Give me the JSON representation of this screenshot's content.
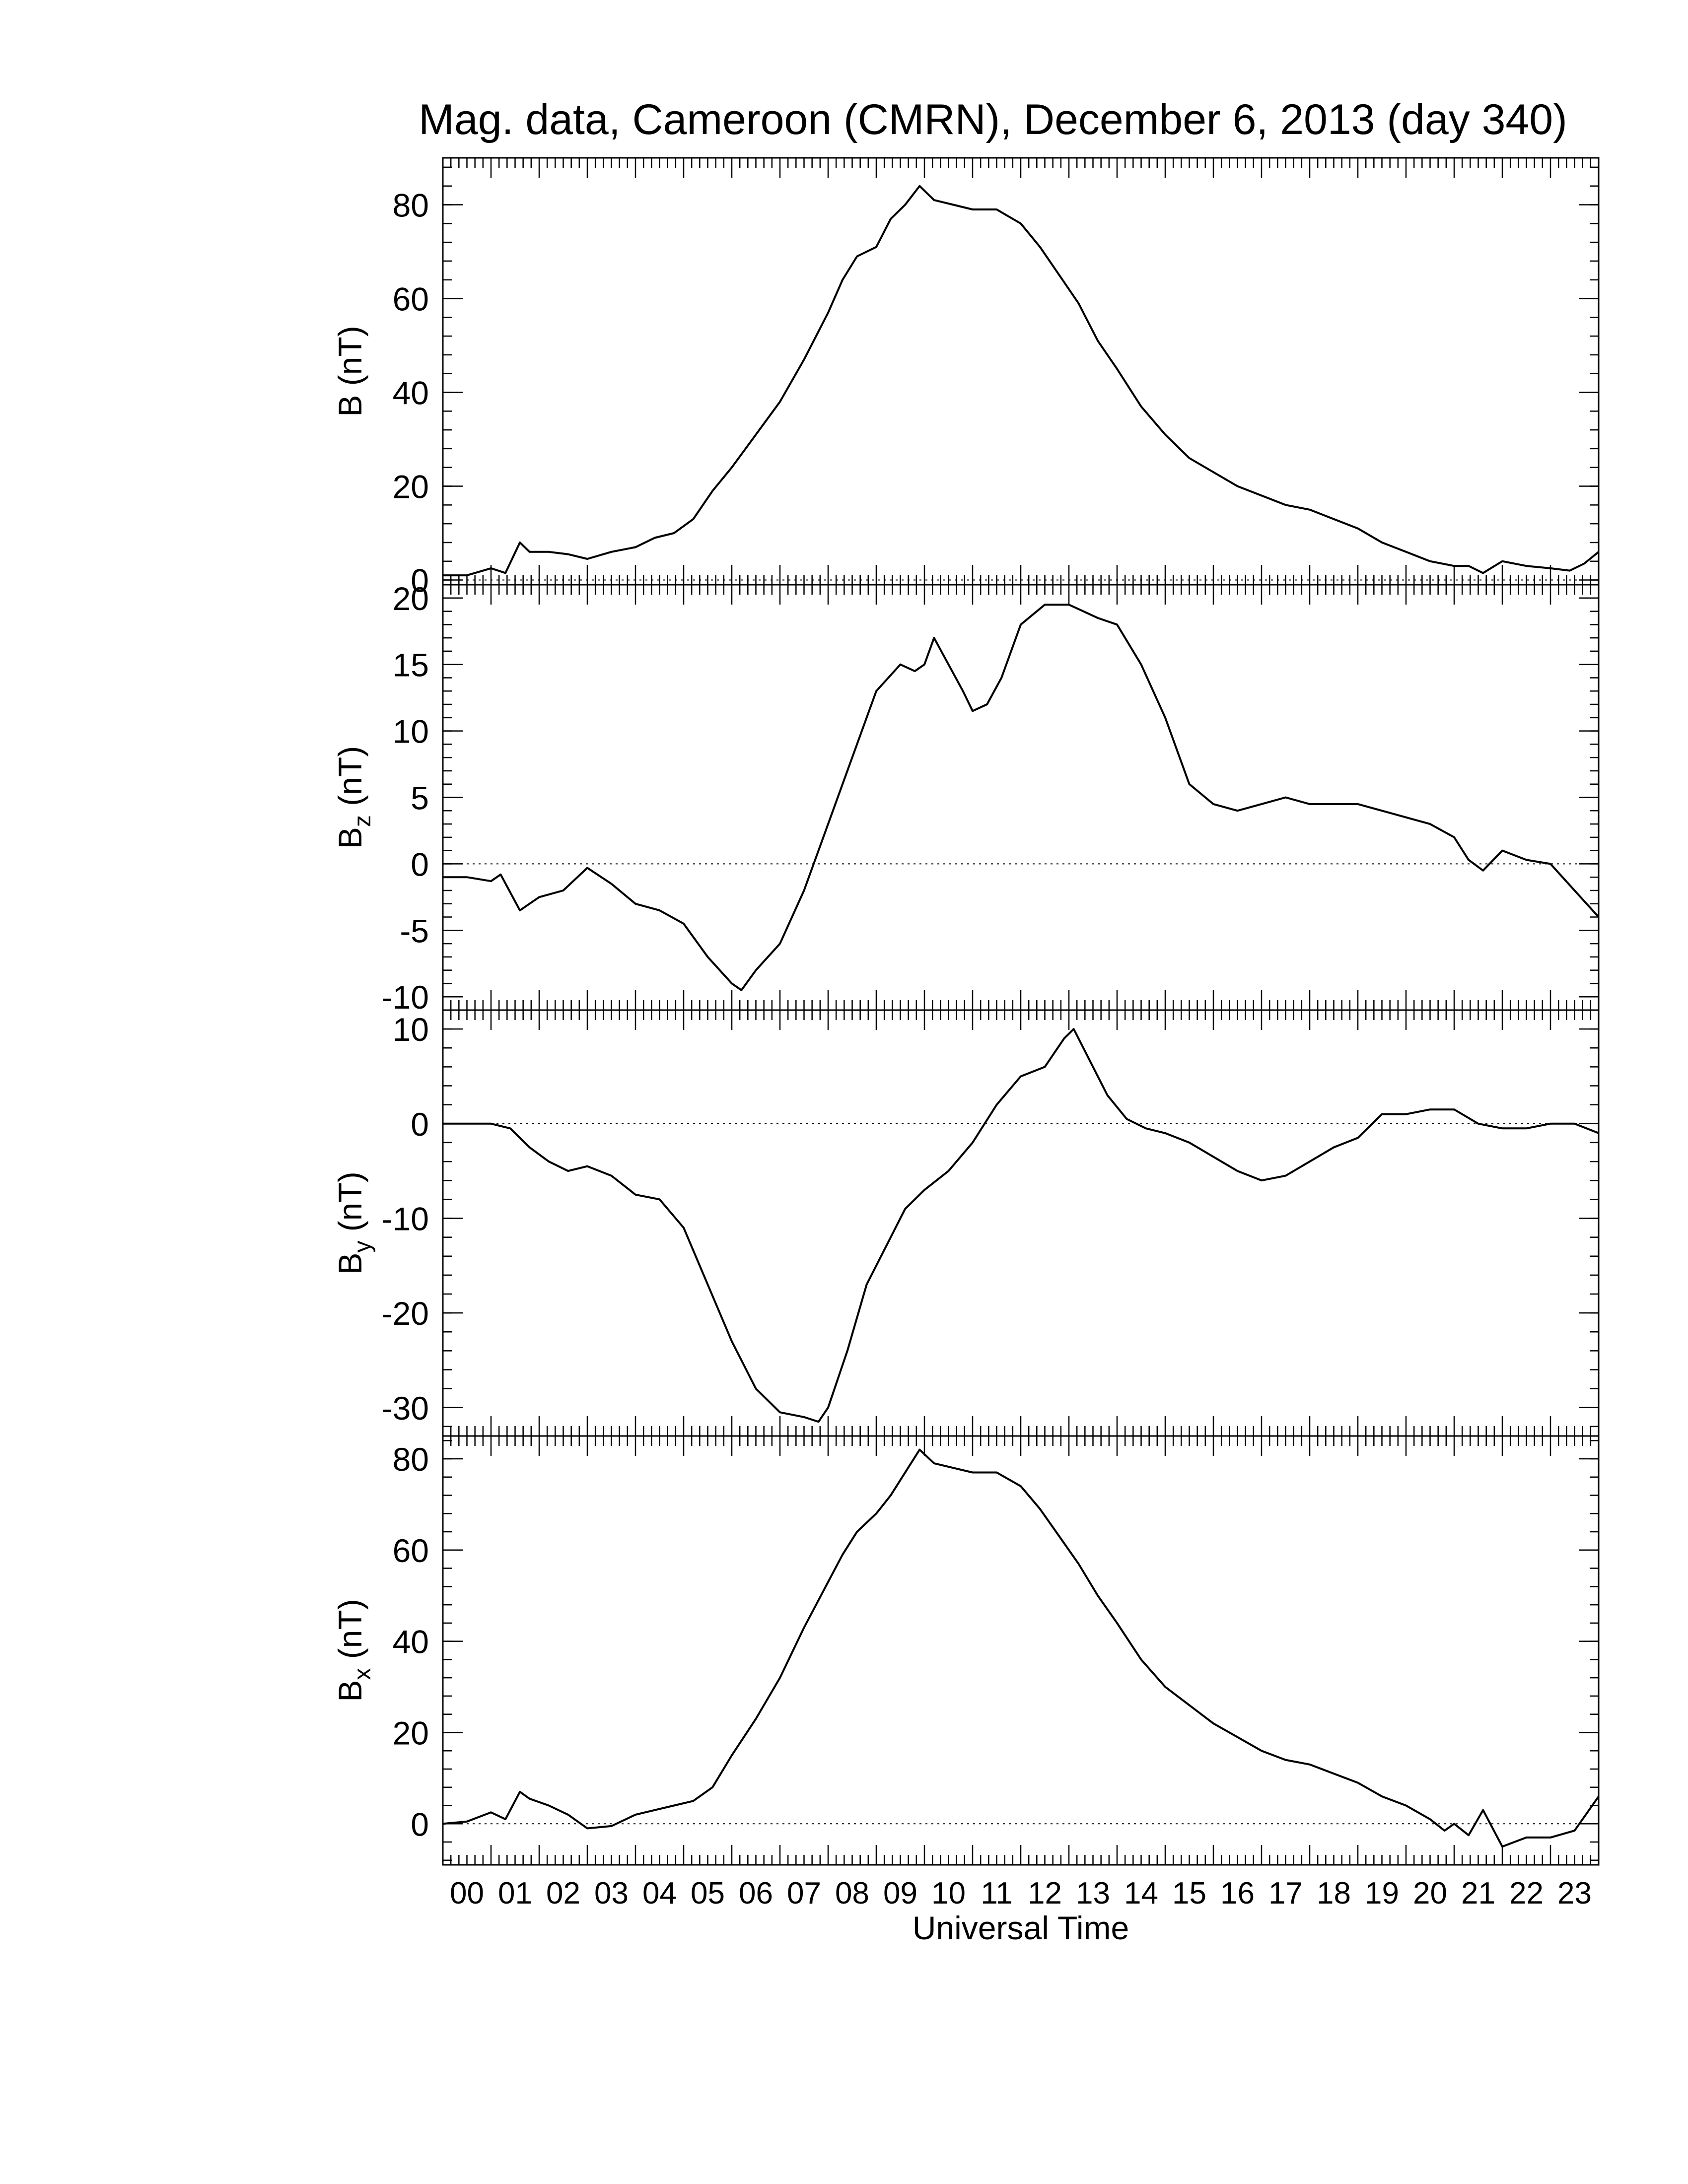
{
  "title": "Mag. data, Cameroon (CMRN), December 6, 2013 (day 340)",
  "colors": {
    "line": "#000000",
    "background": "#ffffff",
    "zero_line": "#000000"
  },
  "chart_data": [
    {
      "type": "line",
      "panel": "B",
      "ylabel": "B (nT)",
      "ylabel_main": "B",
      "ylabel_sub": "",
      "ylabel_unit": "(nT)",
      "ylim": [
        -1,
        90
      ],
      "yticks": [
        0,
        20,
        40,
        60,
        80
      ],
      "ytick_labels": [
        "0",
        "20",
        "40",
        "60",
        "80"
      ],
      "minor_ystep": 4,
      "zero_line": true,
      "series": [
        {
          "x": [
            0,
            0.5,
            1,
            1.3,
            1.6,
            1.8,
            2.2,
            2.6,
            3,
            3.5,
            4,
            4.4,
            4.8,
            5.2,
            5.6,
            6,
            6.5,
            7,
            7.5,
            8,
            8.3,
            8.6,
            9,
            9.3,
            9.6,
            9.9,
            10.2,
            10.6,
            11,
            11.5,
            12,
            12.4,
            12.8,
            13.2,
            13.6,
            14,
            14.5,
            15,
            15.5,
            16,
            16.5,
            17,
            17.5,
            18,
            18.5,
            19,
            19.5,
            20,
            20.5,
            21,
            21.3,
            21.6,
            22,
            22.5,
            23,
            23.4,
            23.7,
            24
          ],
          "y": [
            1,
            1,
            2.5,
            1.5,
            8,
            6,
            6,
            5.5,
            4.5,
            6,
            7,
            9,
            10,
            13,
            19,
            24,
            31,
            38,
            47,
            57,
            64,
            69,
            71,
            77,
            80,
            84,
            81,
            80,
            79,
            79,
            76,
            71,
            65,
            59,
            51,
            45,
            37,
            31,
            26,
            23,
            20,
            18,
            16,
            15,
            13,
            11,
            8,
            6,
            4,
            3,
            3,
            1.5,
            4,
            3,
            2.5,
            2,
            3.5,
            6
          ]
        }
      ]
    },
    {
      "type": "line",
      "panel": "Bz",
      "ylabel": "Bz (nT)",
      "ylabel_main": "B",
      "ylabel_sub": "z",
      "ylabel_unit": "(nT)",
      "ylim": [
        -11,
        21
      ],
      "yticks": [
        -10,
        -5,
        0,
        5,
        10,
        15,
        20
      ],
      "ytick_labels": [
        "-10",
        "-5",
        "0",
        "5",
        "10",
        "15",
        "20"
      ],
      "minor_ystep": 1,
      "zero_line": true,
      "series": [
        {
          "x": [
            0,
            0.5,
            1,
            1.2,
            1.6,
            2,
            2.5,
            3,
            3.5,
            4,
            4.5,
            5,
            5.5,
            6,
            6.2,
            6.5,
            7,
            7.5,
            8,
            8.3,
            8.6,
            9,
            9.5,
            9.8,
            10,
            10.2,
            10.5,
            10.8,
            11,
            11.3,
            11.6,
            12,
            12.5,
            13,
            13.3,
            13.6,
            14,
            14.5,
            15,
            15.5,
            16,
            16.5,
            17,
            17.5,
            18,
            18.5,
            19,
            19.5,
            20,
            20.5,
            21,
            21.3,
            21.6,
            22,
            22.5,
            23,
            23.5,
            24
          ],
          "y": [
            -1,
            -1,
            -1.3,
            -0.8,
            -3.5,
            -2.5,
            -2,
            -0.3,
            -1.5,
            -3,
            -3.5,
            -4.5,
            -7,
            -9,
            -9.5,
            -8,
            -6,
            -2,
            3,
            6,
            9,
            13,
            15,
            14.5,
            15,
            17,
            15,
            13,
            11.5,
            12,
            14,
            18,
            19.5,
            19.5,
            19,
            18.5,
            18,
            15,
            11,
            6,
            4.5,
            4,
            4.5,
            5,
            4.5,
            4.5,
            4.5,
            4,
            3.5,
            3,
            2,
            0.3,
            -0.5,
            1,
            0.3,
            0,
            -2,
            -4
          ]
        }
      ]
    },
    {
      "type": "line",
      "panel": "By",
      "ylabel": "By (nT)",
      "ylabel_main": "B",
      "ylabel_sub": "y",
      "ylabel_unit": "(nT)",
      "ylim": [
        -33,
        12
      ],
      "yticks": [
        -30,
        -20,
        -10,
        0,
        10
      ],
      "ytick_labels": [
        "-30",
        "-20",
        "-10",
        "0",
        "10"
      ],
      "minor_ystep": 2,
      "zero_line": true,
      "series": [
        {
          "x": [
            0,
            0.5,
            1,
            1.4,
            1.8,
            2.2,
            2.6,
            3,
            3.5,
            4,
            4.5,
            5,
            5.5,
            6,
            6.5,
            7,
            7.5,
            7.8,
            8,
            8.4,
            8.8,
            9.2,
            9.6,
            10,
            10.5,
            11,
            11.5,
            12,
            12.5,
            12.9,
            13.1,
            13.4,
            13.8,
            14.2,
            14.6,
            15,
            15.5,
            16,
            16.5,
            17,
            17.5,
            18,
            18.5,
            19,
            19.5,
            20,
            20.5,
            21,
            21.5,
            22,
            22.5,
            23,
            23.5,
            24
          ],
          "y": [
            0,
            0,
            0,
            -0.5,
            -2.5,
            -4,
            -5,
            -4.5,
            -5.5,
            -7.5,
            -8,
            -11,
            -17,
            -23,
            -28,
            -30.5,
            -31,
            -31.5,
            -30,
            -24,
            -17,
            -13,
            -9,
            -7,
            -5,
            -2,
            2,
            5,
            6,
            9,
            10,
            7,
            3,
            0.5,
            -0.5,
            -1,
            -2,
            -3.5,
            -5,
            -6,
            -5.5,
            -4,
            -2.5,
            -1.5,
            1,
            1,
            1.5,
            1.5,
            0,
            -0.5,
            -0.5,
            0,
            0,
            -1
          ]
        }
      ]
    },
    {
      "type": "line",
      "panel": "Bx",
      "ylabel": "Bx (nT)",
      "ylabel_main": "B",
      "ylabel_sub": "x",
      "ylabel_unit": "(nT)",
      "ylim": [
        -9,
        85
      ],
      "yticks": [
        0,
        20,
        40,
        60,
        80
      ],
      "ytick_labels": [
        "0",
        "20",
        "40",
        "60",
        "80"
      ],
      "minor_ystep": 4,
      "zero_line": true,
      "xlabel": "Universal Time",
      "xlim": [
        0,
        24
      ],
      "xticks": [
        0.5,
        1.5,
        2.5,
        3.5,
        4.5,
        5.5,
        6.5,
        7.5,
        8.5,
        9.5,
        10.5,
        11.5,
        12.5,
        13.5,
        14.5,
        15.5,
        16.5,
        17.5,
        18.5,
        19.5,
        20.5,
        21.5,
        22.5,
        23.5
      ],
      "xtick_labels": [
        "00",
        "01",
        "02",
        "03",
        "04",
        "05",
        "06",
        "07",
        "08",
        "09",
        "10",
        "11",
        "12",
        "13",
        "14",
        "15",
        "16",
        "17",
        "18",
        "19",
        "20",
        "21",
        "22",
        "23"
      ],
      "series": [
        {
          "x": [
            0,
            0.5,
            1,
            1.3,
            1.6,
            1.8,
            2.2,
            2.6,
            3,
            3.5,
            4,
            4.4,
            4.8,
            5.2,
            5.6,
            6,
            6.5,
            7,
            7.5,
            8,
            8.3,
            8.6,
            9,
            9.3,
            9.6,
            9.9,
            10.2,
            10.6,
            11,
            11.5,
            12,
            12.4,
            12.8,
            13.2,
            13.6,
            14,
            14.5,
            15,
            15.5,
            16,
            16.5,
            17,
            17.5,
            18,
            18.5,
            19,
            19.5,
            20,
            20.5,
            20.8,
            21,
            21.3,
            21.6,
            22,
            22.5,
            23,
            23.5,
            24
          ],
          "y": [
            0,
            0.5,
            2.5,
            1,
            7,
            5.5,
            4,
            2,
            -1,
            -0.5,
            2,
            3,
            4,
            5,
            8,
            15,
            23,
            32,
            43,
            53,
            59,
            64,
            68,
            72,
            77,
            82,
            79,
            78,
            77,
            77,
            74,
            69,
            63,
            57,
            50,
            44,
            36,
            30,
            26,
            22,
            19,
            16,
            14,
            13,
            11,
            9,
            6,
            4,
            1,
            -1.5,
            0,
            -2.5,
            3,
            -5,
            -3,
            -3,
            -1.5,
            6
          ]
        }
      ]
    }
  ]
}
